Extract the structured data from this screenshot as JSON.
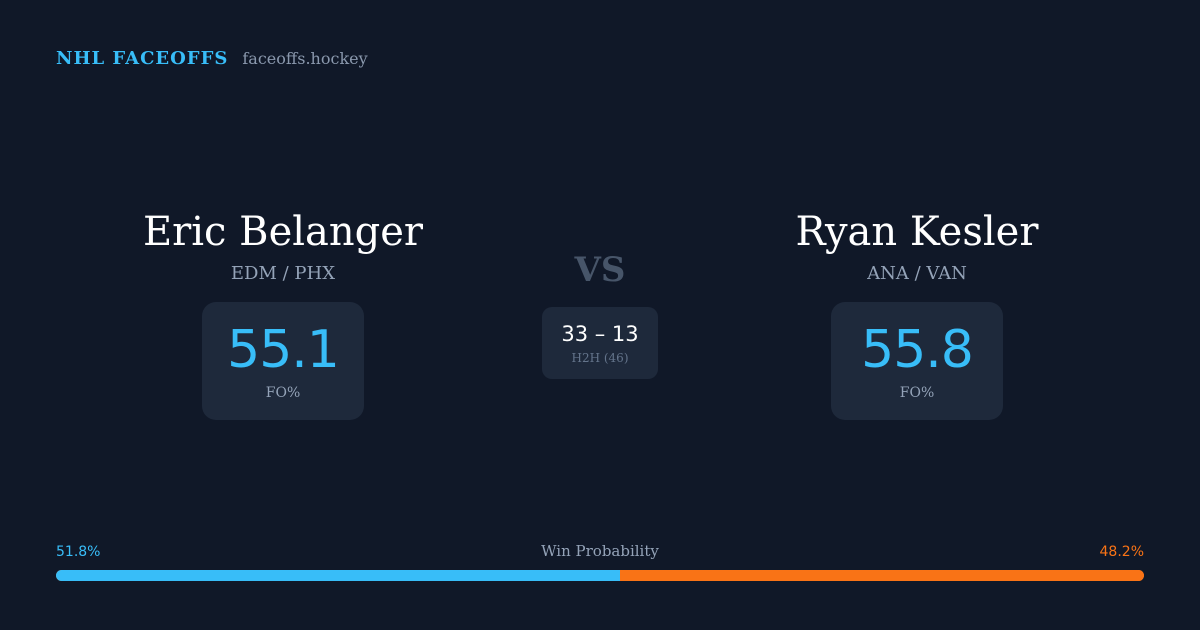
{
  "header": {
    "brand": "NHL FACEOFFS",
    "domain": "faceoffs.hockey"
  },
  "player_left": {
    "name": "Eric Belanger",
    "teams": "EDM / PHX",
    "fo_pct": "55.1",
    "fo_label": "FO%"
  },
  "player_right": {
    "name": "Ryan Kesler",
    "teams": "ANA / VAN",
    "fo_pct": "55.8",
    "fo_label": "FO%"
  },
  "versus": {
    "label": "VS",
    "score": "33 – 13",
    "h2h_label": "H2H (46)"
  },
  "win_probability": {
    "title": "Win Probability",
    "left_label": "51.8%",
    "right_label": "48.2%",
    "left_fraction": 0.518,
    "right_fraction": 0.482
  },
  "colors": {
    "background": "#101828",
    "accent_left": "#38bdf8",
    "accent_right": "#f97316",
    "card": "#1e293b"
  }
}
